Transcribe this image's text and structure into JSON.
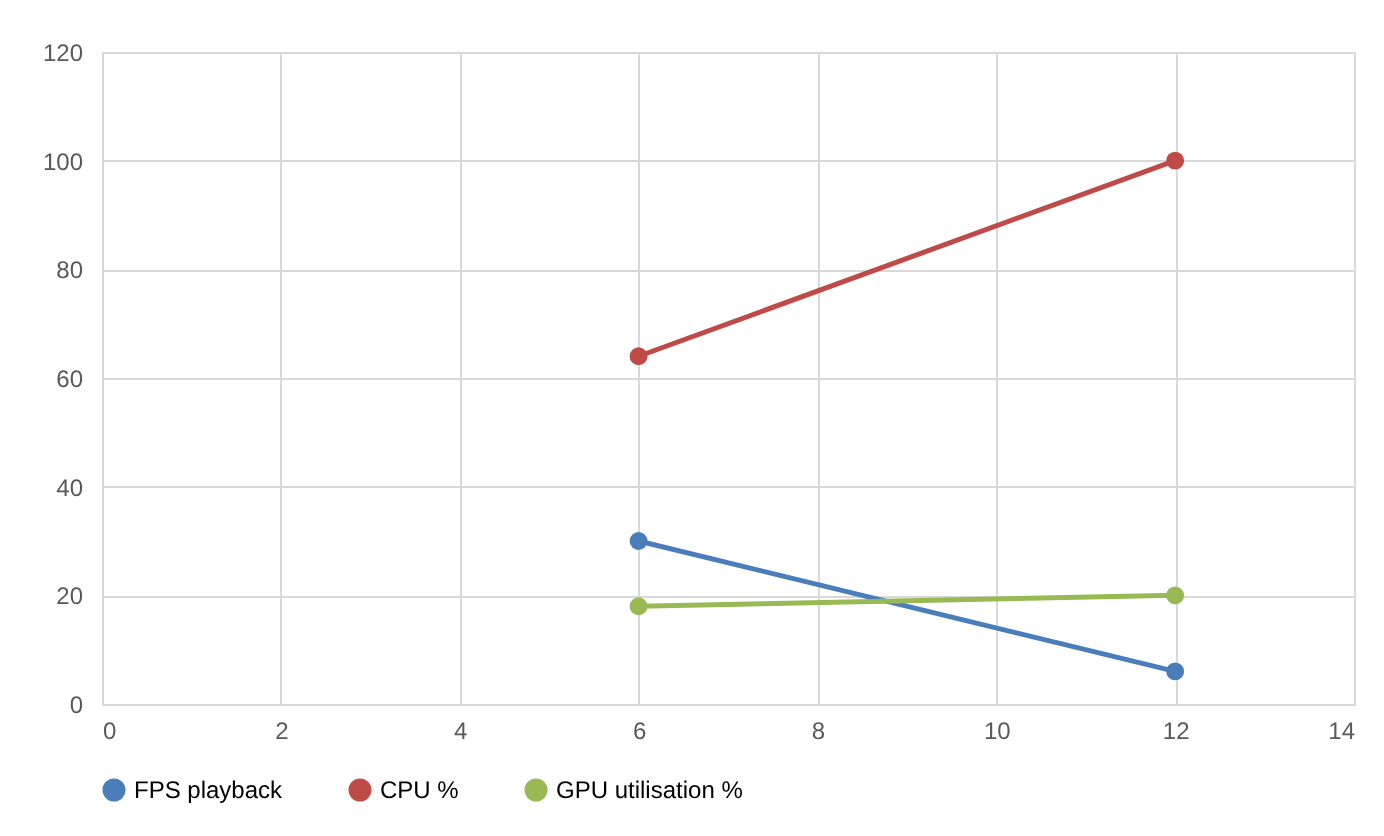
{
  "chart_data": {
    "type": "line",
    "x": [
      6,
      12
    ],
    "series": [
      {
        "name": "FPS playback",
        "color": "#4a7ebb",
        "values": [
          30,
          6
        ]
      },
      {
        "name": "CPU %",
        "color": "#be4b48",
        "values": [
          64,
          100
        ]
      },
      {
        "name": "GPU utilisation %",
        "color": "#98b954",
        "values": [
          18,
          20
        ]
      }
    ],
    "xlim": [
      0,
      14
    ],
    "xticks": [
      0,
      2,
      4,
      6,
      8,
      10,
      12,
      14
    ],
    "ylim": [
      0,
      120
    ],
    "yticks": [
      0,
      20,
      40,
      60,
      80,
      100,
      120
    ],
    "grid": true,
    "legend": "bottom",
    "marker": "circle",
    "line_style": "solid"
  }
}
